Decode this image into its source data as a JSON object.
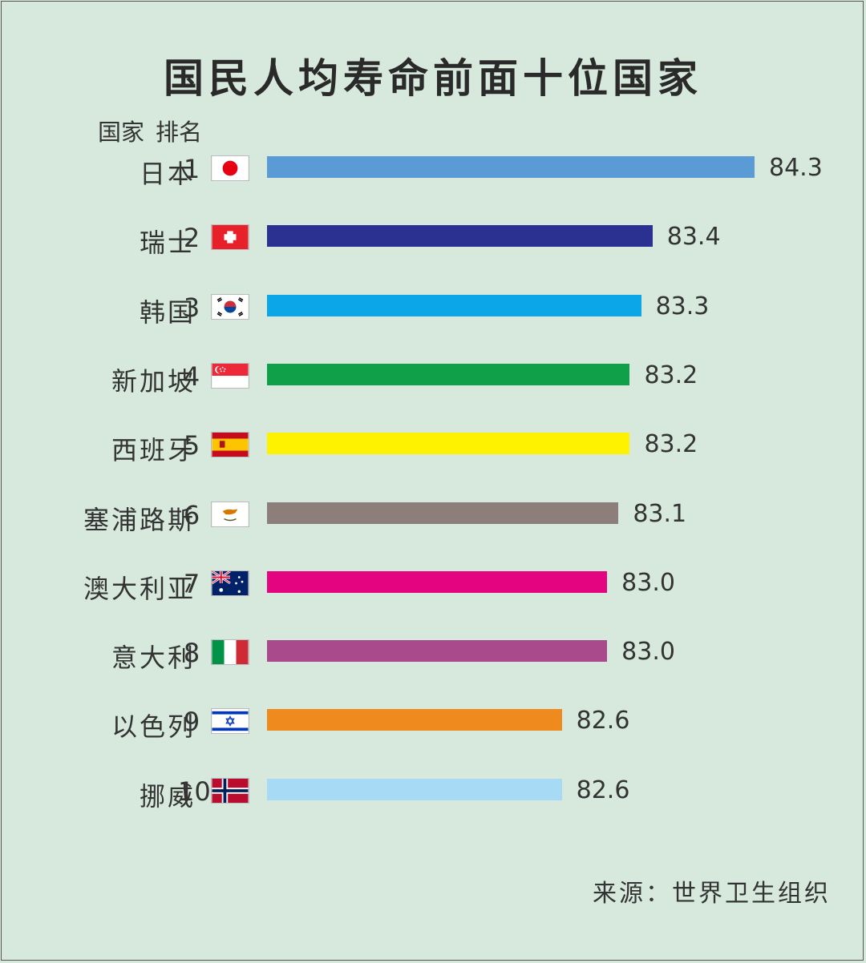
{
  "title": "国民人均寿命前面十位国家",
  "header": {
    "country_label": "国家",
    "rank_label": "排名"
  },
  "source": "来源：世界卫生组织",
  "chart_data": {
    "type": "bar",
    "orientation": "horizontal",
    "title": "国民人均寿命前面十位国家",
    "categories": [
      "日本",
      "瑞士",
      "韩国",
      "新加坡",
      "西班牙",
      "塞浦路斯",
      "澳大利亚",
      "意大利",
      "以色列",
      "挪威"
    ],
    "ranks": [
      "1",
      "2",
      "3",
      "4",
      "5",
      "6",
      "7",
      "8",
      "9",
      "10"
    ],
    "values": [
      84.3,
      83.4,
      83.3,
      83.2,
      83.2,
      83.1,
      83.0,
      83.0,
      82.6,
      82.6
    ],
    "value_labels": [
      "84.3",
      "83.4",
      "83.3",
      "83.2",
      "83.2",
      "83.1",
      "83.0",
      "83.0",
      "82.6",
      "82.6"
    ],
    "colors": [
      "#5b9bd5",
      "#2b3190",
      "#0aa6e8",
      "#10a04a",
      "#fff200",
      "#8c7f79",
      "#e5047f",
      "#a94a8c",
      "#ee8a1e",
      "#a7dbf5"
    ],
    "flags": [
      "japan-flag",
      "switzerland-flag",
      "south-korea-flag",
      "singapore-flag",
      "spain-flag",
      "cyprus-flag",
      "australia-flag",
      "italy-flag",
      "israel-flag",
      "norway-flag"
    ],
    "grid": false,
    "legend": "none"
  }
}
